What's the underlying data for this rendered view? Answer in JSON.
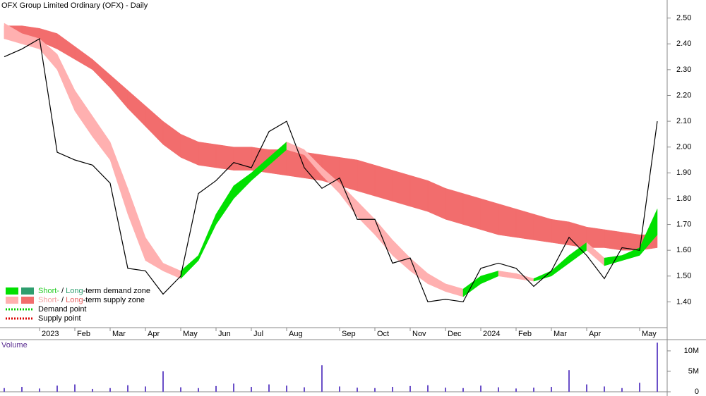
{
  "chart_data": [
    {
      "type": "line",
      "title": "OFX Group Limited Ordinary (OFX) - Daily",
      "categories": [
        null,
        null,
        "2023",
        null,
        "Feb",
        null,
        "Mar",
        null,
        "Apr",
        null,
        "May",
        null,
        "Jun",
        null,
        "Jul",
        null,
        "Aug",
        null,
        null,
        "Sep",
        null,
        "Oct",
        null,
        "Nov",
        null,
        "Dec",
        null,
        "2024",
        null,
        "Feb",
        null,
        "Mar",
        null,
        "Apr",
        null,
        null,
        "May",
        null
      ],
      "series": [
        {
          "name": "Close",
          "color": "#000000",
          "values": [
            2.35,
            2.38,
            2.42,
            1.98,
            1.95,
            1.93,
            1.86,
            1.53,
            1.52,
            1.43,
            1.5,
            1.82,
            1.87,
            1.94,
            1.92,
            2.06,
            2.1,
            1.92,
            1.84,
            1.88,
            1.72,
            1.72,
            1.55,
            1.57,
            1.4,
            1.41,
            1.4,
            1.53,
            1.55,
            1.53,
            1.46,
            1.52,
            1.65,
            1.58,
            1.49,
            1.61,
            1.6,
            2.1
          ]
        }
      ],
      "long_term_zone": {
        "upper": [
          2.47,
          2.47,
          2.46,
          2.44,
          2.39,
          2.34,
          2.28,
          2.22,
          2.16,
          2.1,
          2.05,
          2.02,
          2.01,
          2.0,
          2.0,
          1.99,
          1.99,
          1.98,
          1.97,
          1.96,
          1.95,
          1.93,
          1.91,
          1.89,
          1.87,
          1.84,
          1.82,
          1.8,
          1.78,
          1.76,
          1.74,
          1.72,
          1.71,
          1.69,
          1.68,
          1.67,
          1.66,
          1.66
        ],
        "lower": [
          2.42,
          2.42,
          2.41,
          2.38,
          2.34,
          2.3,
          2.23,
          2.15,
          2.08,
          2.01,
          1.96,
          1.93,
          1.92,
          1.91,
          1.91,
          1.9,
          1.89,
          1.88,
          1.87,
          1.85,
          1.83,
          1.81,
          1.79,
          1.77,
          1.75,
          1.72,
          1.7,
          1.68,
          1.66,
          1.65,
          1.64,
          1.63,
          1.62,
          1.61,
          1.61,
          1.6,
          1.6,
          1.61
        ]
      },
      "short_term_zone": {
        "upper": [
          2.48,
          2.44,
          2.42,
          2.36,
          2.22,
          2.12,
          2.02,
          1.84,
          1.65,
          1.55,
          1.52,
          1.58,
          1.74,
          1.85,
          1.9,
          1.96,
          2.02,
          1.99,
          1.92,
          1.86,
          1.79,
          1.72,
          1.64,
          1.57,
          1.51,
          1.47,
          1.45,
          1.5,
          1.52,
          1.51,
          1.49,
          1.52,
          1.58,
          1.63,
          1.57,
          1.58,
          1.61,
          1.76
        ],
        "lower": [
          2.42,
          2.4,
          2.38,
          2.3,
          2.14,
          2.04,
          1.95,
          1.74,
          1.56,
          1.52,
          1.49,
          1.56,
          1.7,
          1.8,
          1.87,
          1.93,
          1.99,
          1.97,
          1.89,
          1.82,
          1.73,
          1.66,
          1.58,
          1.52,
          1.47,
          1.44,
          1.42,
          1.47,
          1.5,
          1.49,
          1.48,
          1.5,
          1.55,
          1.6,
          1.54,
          1.56,
          1.58,
          1.66
        ]
      },
      "ylim": [
        1.3,
        2.57
      ],
      "yticks": [
        {
          "value": 1.4,
          "label": "1.40"
        },
        {
          "value": 1.5,
          "label": "1.50"
        },
        {
          "value": 1.6,
          "label": "1.60"
        },
        {
          "value": 1.7,
          "label": "1.70"
        },
        {
          "value": 1.8,
          "label": "1.80"
        },
        {
          "value": 1.9,
          "label": "1.90"
        },
        {
          "value": 2.0,
          "label": "2.00"
        },
        {
          "value": 2.1,
          "label": "2.10"
        },
        {
          "value": 2.2,
          "label": "2.20"
        },
        {
          "value": 2.3,
          "label": "2.30"
        },
        {
          "value": 2.4,
          "label": "2.40"
        },
        {
          "value": 2.5,
          "label": "2.50"
        }
      ],
      "legend": [
        {
          "parts": [
            {
              "text": "Short-",
              "color": "#22cc22"
            },
            {
              "text": " / ",
              "color": "#000000"
            },
            {
              "text": "Long",
              "color": "#2e9e6e"
            },
            {
              "text": "-term demand zone",
              "color": "#000000"
            }
          ],
          "colors": [
            "#00e000",
            "#2e9e6e"
          ],
          "style": "box"
        },
        {
          "parts": [
            {
              "text": "Short-",
              "color": "#f3a0a0"
            },
            {
              "text": " / ",
              "color": "#000000"
            },
            {
              "text": "Long",
              "color": "#e86060"
            },
            {
              "text": "-term supply zone",
              "color": "#000000"
            }
          ],
          "colors": [
            "#ffb0b0",
            "#f26d6d"
          ],
          "style": "box"
        },
        {
          "parts": [
            {
              "text": "Demand point",
              "color": "#000000"
            }
          ],
          "colors": [
            "#00cc00"
          ],
          "style": "dots"
        },
        {
          "parts": [
            {
              "text": "Supply point",
              "color": "#000000"
            }
          ],
          "colors": [
            "#dd0000"
          ],
          "style": "dots"
        }
      ]
    },
    {
      "type": "bar",
      "title": "Volume",
      "color": "#6a4fc8",
      "values": [
        900000,
        1200000,
        800000,
        1500000,
        1800000,
        700000,
        900000,
        1600000,
        1300000,
        5000000,
        1100000,
        900000,
        1400000,
        2000000,
        1200000,
        1800000,
        1500000,
        1100000,
        6500000,
        1300000,
        1000000,
        900000,
        1200000,
        1400000,
        1600000,
        1000000,
        900000,
        1500000,
        1100000,
        800000,
        1000000,
        1200000,
        5300000,
        1800000,
        1300000,
        900000,
        2200000,
        12000000
      ],
      "ylim": [
        0,
        12400000
      ],
      "yticks": [
        {
          "value": 0,
          "label": "0"
        },
        {
          "value": 5000000,
          "label": "5M"
        },
        {
          "value": 10000000,
          "label": "10M"
        }
      ]
    }
  ]
}
